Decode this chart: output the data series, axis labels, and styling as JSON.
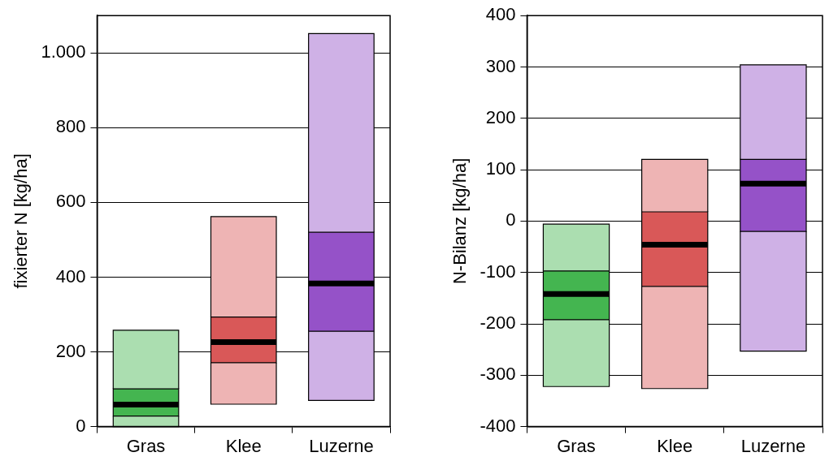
{
  "chart_data": [
    {
      "type": "box",
      "ylabel": "fixierter N [kg/ha]",
      "categories": [
        "Gras",
        "Klee",
        "Luzerne"
      ],
      "colors": [
        "#44b550",
        "#d95858",
        "#9552c8"
      ],
      "boxes": [
        {
          "low": 0,
          "q1": 28,
          "median": 59,
          "q3": 101,
          "high": 258
        },
        {
          "low": 60,
          "q1": 171,
          "median": 226,
          "q3": 293,
          "high": 562
        },
        {
          "low": 70,
          "q1": 255,
          "median": 383,
          "q3": 520,
          "high": 1052
        }
      ],
      "ylim": [
        0,
        1100
      ],
      "yticks": [
        0,
        200,
        400,
        600,
        800,
        {
          "value": 1000,
          "label": "1.000"
        }
      ],
      "grid": "y",
      "legend": false
    },
    {
      "type": "box",
      "ylabel": "N-Bilanz [kg/ha]",
      "categories": [
        "Gras",
        "Klee",
        "Luzerne"
      ],
      "colors": [
        "#44b550",
        "#d95858",
        "#9552c8"
      ],
      "boxes": [
        {
          "low": -322,
          "q1": -192,
          "median": -142,
          "q3": -97,
          "high": -6
        },
        {
          "low": -326,
          "q1": -127,
          "median": -46,
          "q3": 18,
          "high": 120
        },
        {
          "low": -253,
          "q1": -20,
          "median": 73,
          "q3": 120,
          "high": 304
        }
      ],
      "ylim": [
        -400,
        400
      ],
      "yticks": [
        -400,
        -300,
        -200,
        -100,
        0,
        100,
        200,
        300,
        400
      ],
      "grid": "y",
      "legend": false
    }
  ]
}
